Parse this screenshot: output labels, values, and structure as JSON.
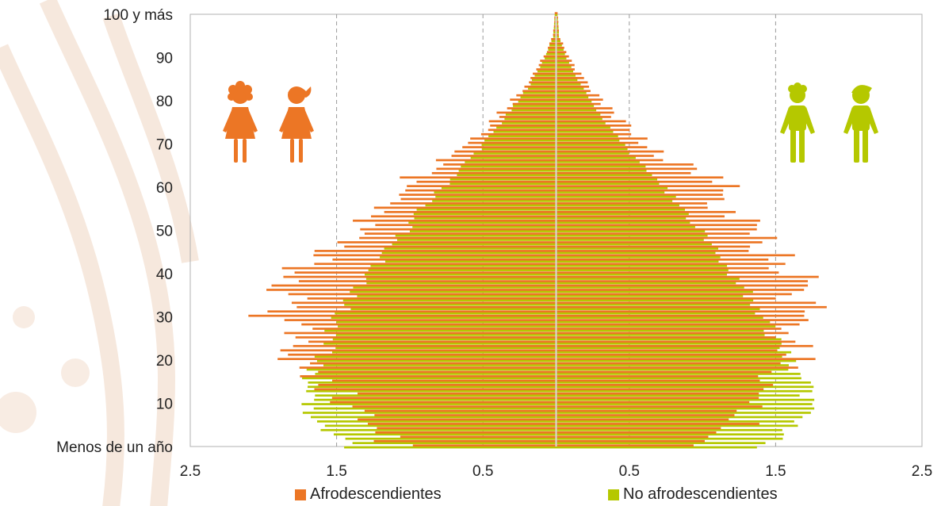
{
  "chart_data": {
    "type": "bar",
    "orientation": "horizontal",
    "population_pyramid": true,
    "x_ticks": [
      "2.5",
      "1.5",
      "0.5",
      "0.5",
      "1.5",
      "2.5"
    ],
    "x_tick_values": [
      -2.5,
      -1.5,
      -0.5,
      0.5,
      1.5,
      2.5
    ],
    "xlim": [
      -2.5,
      2.5
    ],
    "y_ticks": [
      {
        "label": "Menos de un año",
        "age": 0
      },
      {
        "label": "10",
        "age": 10
      },
      {
        "label": "20",
        "age": 20
      },
      {
        "label": "30",
        "age": 30
      },
      {
        "label": "40",
        "age": 40
      },
      {
        "label": "50",
        "age": 50
      },
      {
        "label": "60",
        "age": 60
      },
      {
        "label": "70",
        "age": 70
      },
      {
        "label": "80",
        "age": 80
      },
      {
        "label": "90",
        "age": 90
      },
      {
        "label": "100 y más",
        "age": 100
      }
    ],
    "age_knots": [
      0,
      5,
      10,
      15,
      20,
      25,
      30,
      35,
      40,
      45,
      50,
      55,
      60,
      65,
      70,
      75,
      80,
      85,
      90,
      95,
      100
    ],
    "series": [
      {
        "name": "Afrodescendientes",
        "color": "#ec7625",
        "women_left": [
          1.1,
          1.3,
          1.4,
          1.55,
          1.8,
          1.85,
          1.9,
          1.8,
          1.75,
          1.55,
          1.4,
          1.15,
          1.1,
          0.85,
          0.62,
          0.45,
          0.3,
          0.18,
          0.08,
          0.02,
          0.01
        ],
        "men_right": [
          1.0,
          1.3,
          1.4,
          1.5,
          1.7,
          1.65,
          1.75,
          1.6,
          1.65,
          1.45,
          1.35,
          1.15,
          1.15,
          0.85,
          0.6,
          0.45,
          0.3,
          0.18,
          0.08,
          0.02,
          0.01
        ]
      },
      {
        "name": "No afrodescendientes",
        "color": "#b5c800",
        "women_left": [
          1.4,
          1.6,
          1.72,
          1.7,
          1.6,
          1.55,
          1.5,
          1.4,
          1.28,
          1.16,
          1.04,
          0.92,
          0.78,
          0.64,
          0.5,
          0.38,
          0.26,
          0.16,
          0.08,
          0.02,
          0.01
        ],
        "men_right": [
          1.4,
          1.65,
          1.75,
          1.7,
          1.58,
          1.5,
          1.42,
          1.32,
          1.2,
          1.1,
          0.98,
          0.86,
          0.74,
          0.6,
          0.46,
          0.34,
          0.24,
          0.15,
          0.07,
          0.02,
          0.01
        ]
      }
    ],
    "grid": {
      "vertical_dashed": true
    },
    "legend_placement": "bottom"
  },
  "legend": {
    "afro_label": "Afrodescendientes",
    "no_afro_label": "No afrodescendientes"
  },
  "icons": {
    "women": [
      "woman-curly-hair-icon",
      "woman-ponytail-icon"
    ],
    "men": [
      "man-curly-hair-icon",
      "man-short-hair-icon"
    ]
  },
  "colors": {
    "afro": "#ec7625",
    "no_afro": "#b5c800",
    "watermark": "#f6e6da"
  }
}
